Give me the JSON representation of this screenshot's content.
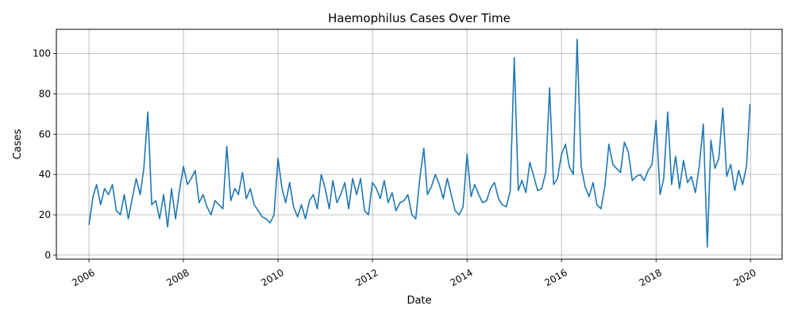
{
  "chart_data": {
    "type": "line",
    "title": "Haemophilus Cases Over Time",
    "xlabel": "Date",
    "ylabel": "Cases",
    "xlim": [
      "2005-04-24",
      "2020-09-01"
    ],
    "ylim": [
      -2,
      112
    ],
    "x_ticks": [
      "2006",
      "2008",
      "2010",
      "2012",
      "2014",
      "2016",
      "2018",
      "2020"
    ],
    "y_ticks": [
      0,
      20,
      40,
      60,
      80,
      100
    ],
    "grid": true,
    "line_color": "#1f77b4",
    "series": [
      {
        "name": "",
        "x": [
          "2006-01-01",
          "2006-02-01",
          "2006-03-01",
          "2006-04-01",
          "2006-05-01",
          "2006-06-01",
          "2006-07-01",
          "2006-08-01",
          "2006-09-01",
          "2006-10-01",
          "2006-11-01",
          "2006-12-01",
          "2007-01-01",
          "2007-02-01",
          "2007-03-01",
          "2007-04-01",
          "2007-05-01",
          "2007-06-01",
          "2007-07-01",
          "2007-08-01",
          "2007-09-01",
          "2007-10-01",
          "2007-11-01",
          "2007-12-01",
          "2008-01-01",
          "2008-02-01",
          "2008-03-01",
          "2008-04-01",
          "2008-05-01",
          "2008-06-01",
          "2008-07-01",
          "2008-08-01",
          "2008-09-01",
          "2008-10-01",
          "2008-11-01",
          "2008-12-01",
          "2009-01-01",
          "2009-02-01",
          "2009-03-01",
          "2009-04-01",
          "2009-05-01",
          "2009-06-01",
          "2009-07-01",
          "2009-08-01",
          "2009-09-01",
          "2009-10-01",
          "2009-11-01",
          "2009-12-01",
          "2010-01-01",
          "2010-02-01",
          "2010-03-01",
          "2010-04-01",
          "2010-05-01",
          "2010-06-01",
          "2010-07-01",
          "2010-08-01",
          "2010-09-01",
          "2010-10-01",
          "2010-11-01",
          "2010-12-01",
          "2011-01-01",
          "2011-02-01",
          "2011-03-01",
          "2011-04-01",
          "2011-05-01",
          "2011-06-01",
          "2011-07-01",
          "2011-08-01",
          "2011-09-01",
          "2011-10-01",
          "2011-11-01",
          "2011-12-01",
          "2012-01-01",
          "2012-02-01",
          "2012-03-01",
          "2012-04-01",
          "2012-05-01",
          "2012-06-01",
          "2012-07-01",
          "2012-08-01",
          "2012-09-01",
          "2012-10-01",
          "2012-11-01",
          "2012-12-01",
          "2013-01-01",
          "2013-02-01",
          "2013-03-01",
          "2013-04-01",
          "2013-05-01",
          "2013-06-01",
          "2013-07-01",
          "2013-08-01",
          "2013-09-01",
          "2013-10-01",
          "2013-11-01",
          "2013-12-01",
          "2014-01-01",
          "2014-02-01",
          "2014-03-01",
          "2014-04-01",
          "2014-05-01",
          "2014-06-01",
          "2014-07-01",
          "2014-08-01",
          "2014-09-01",
          "2014-10-01",
          "2014-11-01",
          "2014-12-01",
          "2015-01-01",
          "2015-02-01",
          "2015-03-01",
          "2015-04-01",
          "2015-05-01",
          "2015-06-01",
          "2015-07-01",
          "2015-08-01",
          "2015-09-01",
          "2015-10-01",
          "2015-11-01",
          "2015-12-01",
          "2016-01-01",
          "2016-02-01",
          "2016-03-01",
          "2016-04-01",
          "2016-05-01",
          "2016-06-01",
          "2016-07-01",
          "2016-08-01",
          "2016-09-01",
          "2016-10-01",
          "2016-11-01",
          "2016-12-01",
          "2017-01-01",
          "2017-02-01",
          "2017-03-01",
          "2017-04-01",
          "2017-05-01",
          "2017-06-01",
          "2017-07-01",
          "2017-08-01",
          "2017-09-01",
          "2017-10-01",
          "2017-11-01",
          "2017-12-01",
          "2018-01-01",
          "2018-02-01",
          "2018-03-01",
          "2018-04-01",
          "2018-05-01",
          "2018-06-01",
          "2018-07-01",
          "2018-08-01",
          "2018-09-01",
          "2018-10-01",
          "2018-11-01",
          "2018-12-01",
          "2019-01-01",
          "2019-02-01",
          "2019-03-01",
          "2019-04-01",
          "2019-05-01",
          "2019-06-01",
          "2019-07-01",
          "2019-08-01",
          "2019-09-01",
          "2019-10-01",
          "2019-11-01",
          "2019-12-01",
          "2019-12-28"
        ],
        "values": [
          15,
          29,
          35,
          25,
          33,
          30,
          35,
          22,
          20,
          30,
          18,
          28,
          38,
          30,
          43,
          71,
          25,
          27,
          18,
          30,
          14,
          33,
          18,
          32,
          44,
          35,
          38,
          42,
          26,
          30,
          24,
          20,
          27,
          25,
          23,
          54,
          27,
          33,
          30,
          41,
          28,
          33,
          25,
          22,
          19,
          18,
          16,
          20,
          48,
          33,
          26,
          36,
          24,
          19,
          25,
          18,
          27,
          30,
          23,
          40,
          33,
          23,
          37,
          26,
          30,
          36,
          23,
          38,
          30,
          38,
          22,
          20,
          36,
          33,
          28,
          37,
          26,
          31,
          22,
          26,
          27,
          30,
          20,
          18,
          38,
          53,
          30,
          34,
          40,
          35,
          28,
          38,
          30,
          22,
          20,
          24,
          50,
          29,
          35,
          30,
          26,
          27,
          33,
          36,
          28,
          25,
          24,
          32,
          98,
          32,
          37,
          31,
          46,
          39,
          32,
          33,
          41,
          83,
          35,
          38,
          50,
          55,
          44,
          40,
          107,
          44,
          34,
          29,
          36,
          25,
          23,
          34,
          55,
          45,
          43,
          41,
          56,
          51,
          37,
          39,
          40,
          37,
          42,
          45,
          67,
          30,
          38,
          71,
          35,
          49,
          33,
          47,
          36,
          39,
          31,
          44,
          65,
          4,
          57,
          43,
          48,
          73,
          39,
          45,
          32,
          42,
          35,
          44,
          75
        ]
      }
    ]
  }
}
